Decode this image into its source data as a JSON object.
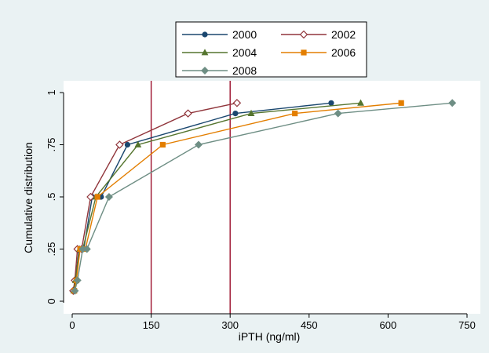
{
  "chart_data": {
    "type": "line",
    "title": "",
    "xlabel": "iPTH (ng/ml)",
    "ylabel": "Cumulative distribution",
    "xlim": [
      0,
      750
    ],
    "ylim": [
      0,
      1
    ],
    "x_ticks": [
      0,
      150,
      300,
      450,
      600,
      750
    ],
    "y_ticks": [
      0,
      0.25,
      0.5,
      0.75,
      1
    ],
    "x_tick_labels": [
      "0",
      "150",
      "300",
      "450",
      "600",
      "750"
    ],
    "y_tick_labels": [
      "0",
      ".25",
      ".5",
      ".75",
      "1"
    ],
    "grid": false,
    "legend_position": "top-center",
    "reference_lines": {
      "x": [
        150,
        300
      ],
      "color": "#9b0e2a"
    },
    "series": [
      {
        "name": "2000",
        "color": "#1a476f",
        "marker": "circle",
        "x": [
          3,
          6,
          13,
          22,
          38,
          55,
          105,
          310,
          492
        ],
        "y": [
          0.05,
          0.1,
          0.25,
          0.25,
          0.5,
          0.5,
          0.75,
          0.9,
          0.95
        ]
      },
      {
        "name": "2002",
        "color": "#90353b",
        "marker": "diamond-hollow",
        "x": [
          2,
          5,
          10,
          18,
          35,
          90,
          220,
          313
        ],
        "y": [
          0.05,
          0.1,
          0.25,
          0.25,
          0.5,
          0.75,
          0.9,
          0.95
        ]
      },
      {
        "name": "2004",
        "color": "#55752f",
        "marker": "triangle",
        "x": [
          3,
          6,
          14,
          20,
          45,
          125,
          340,
          548
        ],
        "y": [
          0.05,
          0.1,
          0.25,
          0.25,
          0.5,
          0.75,
          0.9,
          0.95
        ]
      },
      {
        "name": "2006",
        "color": "#e37e00",
        "marker": "square",
        "x": [
          4,
          8,
          15,
          25,
          48,
          172,
          423,
          625
        ],
        "y": [
          0.05,
          0.1,
          0.25,
          0.25,
          0.5,
          0.75,
          0.9,
          0.95
        ]
      },
      {
        "name": "2008",
        "color": "#6e8e84",
        "marker": "diamond",
        "x": [
          5,
          10,
          20,
          28,
          70,
          240,
          505,
          722
        ],
        "y": [
          0.05,
          0.1,
          0.25,
          0.25,
          0.5,
          0.75,
          0.9,
          0.95
        ]
      }
    ]
  },
  "colors": {
    "background": "#eaf2f3",
    "plot_area": "#ffffff",
    "reference_line": "#9b0e2a"
  }
}
